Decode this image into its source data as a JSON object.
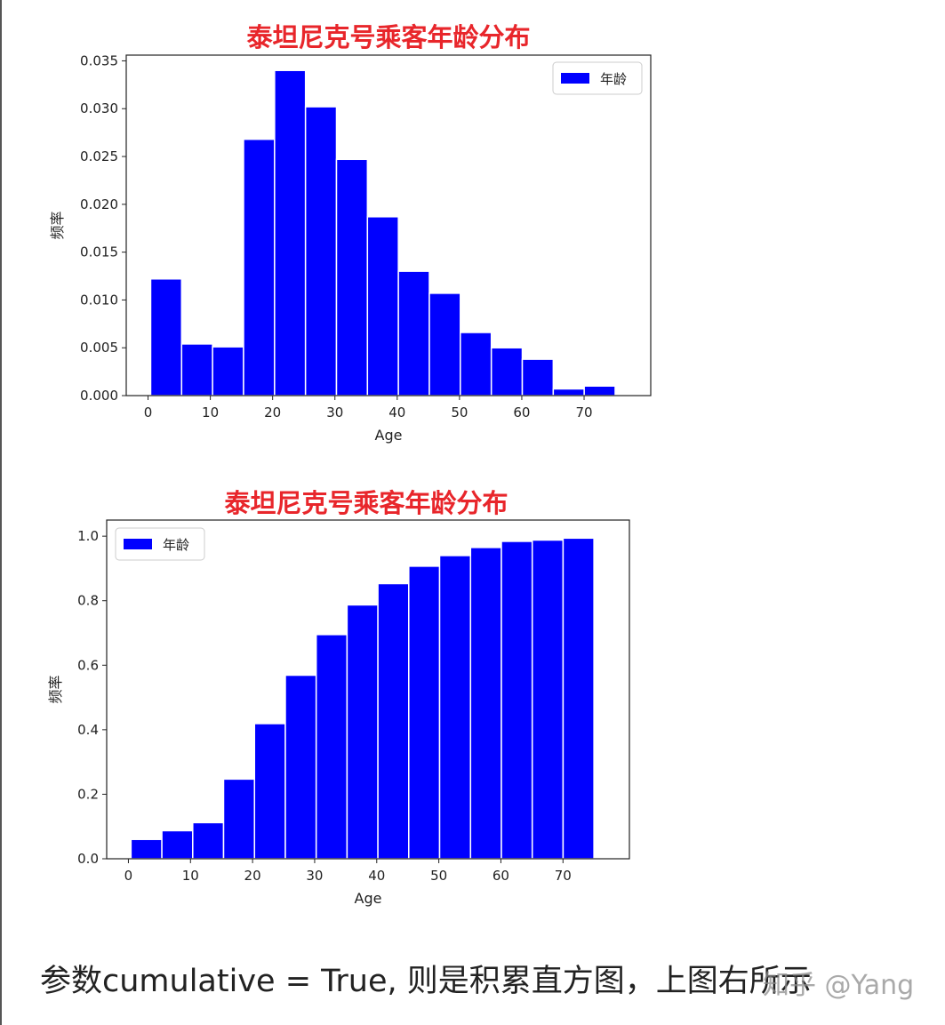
{
  "colors": {
    "bar": "#0000ff",
    "bar_edge": "#ffffff",
    "title": "#e8262b",
    "axes": "#222222"
  },
  "chart_data": [
    {
      "type": "bar",
      "title": "泰坦尼克号乘客年龄分布",
      "xlabel": "Age",
      "ylabel": "频率",
      "legend": {
        "label": "年龄",
        "position": "top-right"
      },
      "xlim": [
        -3.5,
        80.7
      ],
      "ylim": [
        0,
        0.0356
      ],
      "xticks": [
        0,
        10,
        20,
        30,
        40,
        50,
        60,
        70
      ],
      "yticks": [
        "0.000",
        "0.005",
        "0.010",
        "0.015",
        "0.020",
        "0.025",
        "0.030",
        "0.035"
      ],
      "bin_edges": [
        0.42,
        5.39,
        10.36,
        15.33,
        20.31,
        25.28,
        30.25,
        35.22,
        40.19,
        45.16,
        50.13,
        55.11,
        60.08,
        65.05,
        70.02,
        74.99
      ],
      "values": [
        0.0122,
        0.0054,
        0.0051,
        0.0268,
        0.034,
        0.0302,
        0.0247,
        0.0187,
        0.013,
        0.0107,
        0.0066,
        0.005,
        0.0038,
        0.0007,
        0.001
      ],
      "grid": false
    },
    {
      "type": "bar",
      "cumulative": true,
      "title": "泰坦尼克号乘客年龄分布",
      "xlabel": "Age",
      "ylabel": "频率",
      "legend": {
        "label": "年龄",
        "position": "top-left"
      },
      "xlim": [
        -3.5,
        80.7
      ],
      "ylim": [
        0,
        1.05
      ],
      "xticks": [
        0,
        10,
        20,
        30,
        40,
        50,
        60,
        70
      ],
      "yticks": [
        "0.0",
        "0.2",
        "0.4",
        "0.6",
        "0.8",
        "1.0"
      ],
      "bin_edges": [
        0.42,
        5.39,
        10.36,
        15.33,
        20.31,
        25.28,
        30.25,
        35.22,
        40.19,
        45.16,
        50.13,
        55.11,
        60.08,
        65.05,
        70.02,
        74.99
      ],
      "values": [
        0.06,
        0.087,
        0.112,
        0.247,
        0.419,
        0.569,
        0.695,
        0.787,
        0.853,
        0.907,
        0.94,
        0.965,
        0.984,
        0.988,
        0.994
      ],
      "grid": false
    }
  ],
  "caption": "参数cumulative = True, 则是积累直方图，上图右所示",
  "watermark": "知乎 @Yang"
}
